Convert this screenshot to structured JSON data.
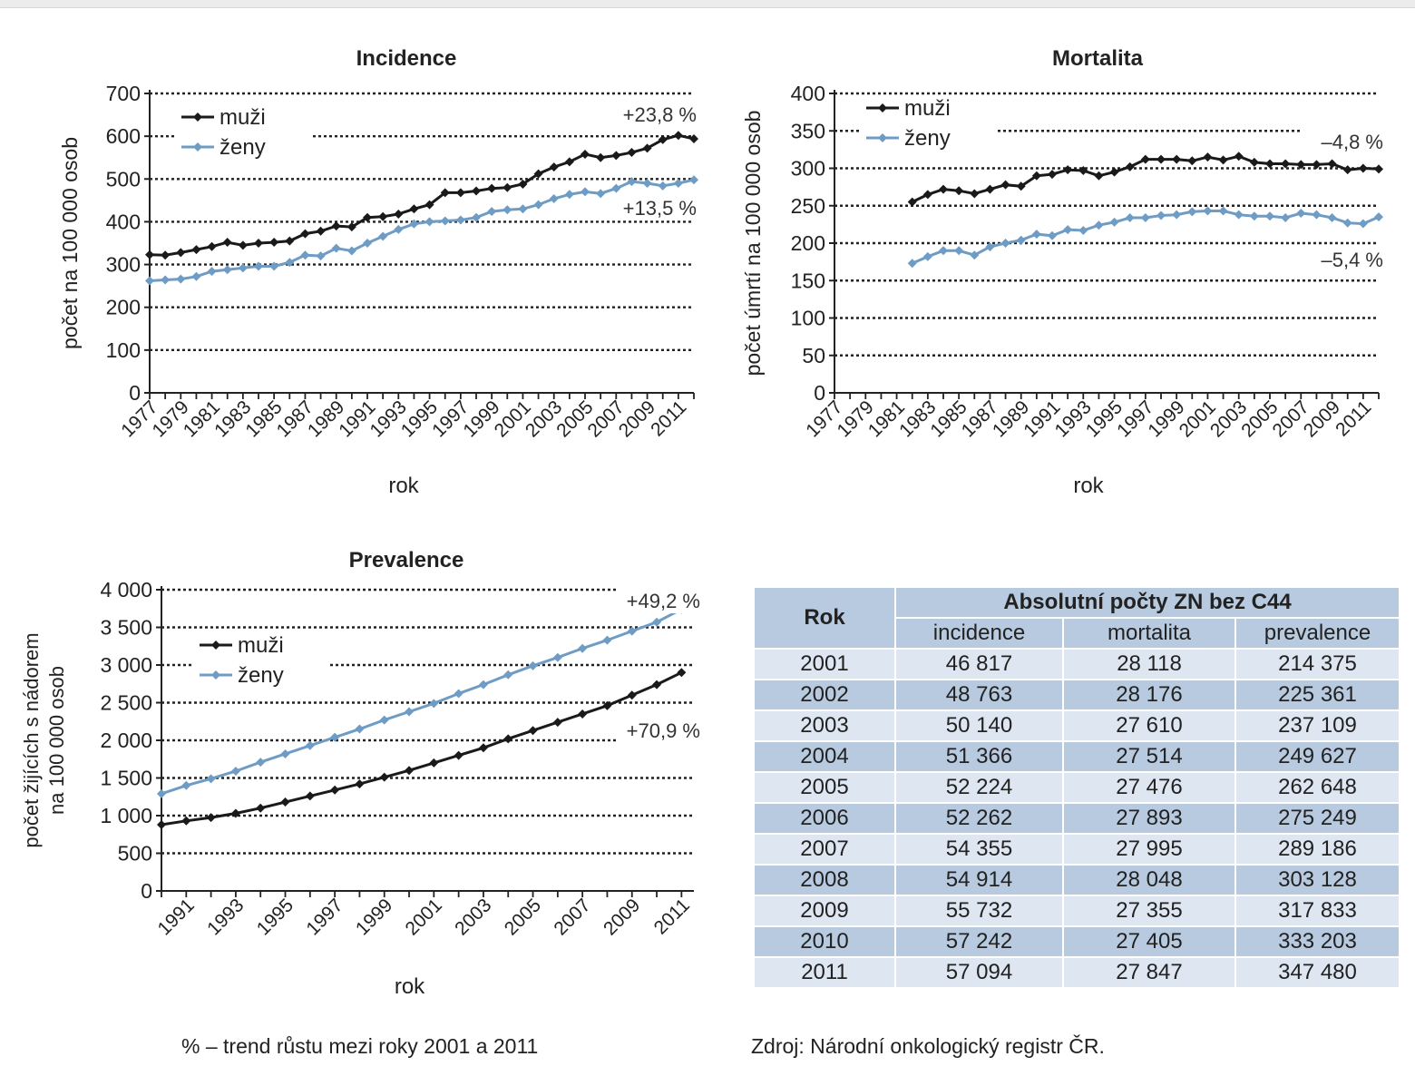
{
  "chart_data": [
    {
      "type": "line",
      "title": "Incidence",
      "xlabel": "rok",
      "ylabel": "počet na 100 000 osob",
      "ylim": [
        0,
        700
      ],
      "yticks": [
        "0",
        "100",
        "200",
        "300",
        "400",
        "500",
        "600",
        "700"
      ],
      "xticks": [
        "1977",
        "1979",
        "1981",
        "1983",
        "1985",
        "1987",
        "1989",
        "1991",
        "1993",
        "1995",
        "1997",
        "1999",
        "2001",
        "2003",
        "2005",
        "2007",
        "2009",
        "2011"
      ],
      "x": [
        1977,
        1978,
        1979,
        1980,
        1981,
        1982,
        1983,
        1984,
        1985,
        1986,
        1987,
        1988,
        1989,
        1990,
        1991,
        1992,
        1993,
        1994,
        1995,
        1996,
        1997,
        1998,
        1999,
        2000,
        2001,
        2002,
        2003,
        2004,
        2005,
        2006,
        2007,
        2008,
        2009,
        2010,
        2011,
        2012
      ],
      "series": [
        {
          "name": "muži",
          "color": "#1a1a1a",
          "values": [
            323,
            322,
            328,
            335,
            342,
            352,
            345,
            350,
            352,
            355,
            372,
            378,
            390,
            388,
            410,
            412,
            418,
            430,
            440,
            468,
            468,
            472,
            478,
            480,
            488,
            512,
            528,
            540,
            558,
            550,
            555,
            562,
            572,
            592,
            602,
            594
          ]
        },
        {
          "name": "ženy",
          "color": "#6e9cc4",
          "values": [
            262,
            264,
            266,
            272,
            284,
            288,
            292,
            296,
            296,
            305,
            322,
            320,
            338,
            332,
            350,
            366,
            382,
            395,
            400,
            402,
            404,
            410,
            424,
            428,
            430,
            440,
            454,
            464,
            470,
            466,
            478,
            494,
            490,
            484,
            490,
            498
          ]
        }
      ],
      "annotations": [
        "+23,8 %",
        "+13,5 %"
      ],
      "legend": "top-left",
      "grid": true
    },
    {
      "type": "line",
      "title": "Mortalita",
      "xlabel": "rok",
      "ylabel": "počet úmrtí na 100 000 osob",
      "ylim": [
        0,
        400
      ],
      "yticks": [
        "0",
        "50",
        "100",
        "150",
        "200",
        "250",
        "300",
        "350",
        "400"
      ],
      "xticks": [
        "1977",
        "1979",
        "1981",
        "1983",
        "1985",
        "1987",
        "1989",
        "1991",
        "1993",
        "1995",
        "1997",
        "1999",
        "2001",
        "2003",
        "2005",
        "2007",
        "2009",
        "2011"
      ],
      "x": [
        1982,
        1983,
        1984,
        1985,
        1986,
        1987,
        1988,
        1989,
        1990,
        1991,
        1992,
        1993,
        1994,
        1995,
        1996,
        1997,
        1998,
        1999,
        2000,
        2001,
        2002,
        2003,
        2004,
        2005,
        2006,
        2007,
        2008,
        2009,
        2010,
        2011,
        2012
      ],
      "series": [
        {
          "name": "muži",
          "color": "#1a1a1a",
          "values": [
            255,
            265,
            272,
            270,
            266,
            272,
            278,
            276,
            290,
            292,
            298,
            297,
            290,
            295,
            302,
            312,
            312,
            312,
            310,
            315,
            311,
            316,
            308,
            306,
            306,
            305,
            305,
            306,
            298,
            300,
            299
          ]
        },
        {
          "name": "ženy",
          "color": "#6e9cc4",
          "values": [
            173,
            182,
            190,
            190,
            184,
            195,
            200,
            204,
            212,
            210,
            218,
            217,
            224,
            228,
            234,
            234,
            237,
            238,
            242,
            243,
            243,
            238,
            236,
            236,
            234,
            240,
            238,
            234,
            227,
            226,
            235
          ]
        }
      ],
      "annotations": [
        "–4,8 %",
        "–5,4 %"
      ],
      "legend": "top-left",
      "grid": true
    },
    {
      "type": "line",
      "title": "Prevalence",
      "xlabel": "rok",
      "ylabel": "počet žijících s nádorem na 100 000 osob",
      "ylim": [
        0,
        4000
      ],
      "yticks": [
        "0",
        "500",
        "1 000",
        "1 500",
        "2 000",
        "2 500",
        "3 000",
        "3 500",
        "4 000"
      ],
      "xticks": [
        "1991",
        "1993",
        "1995",
        "1997",
        "1999",
        "2001",
        "2003",
        "2005",
        "2007",
        "2009",
        "2011"
      ],
      "x": [
        1990,
        1991,
        1992,
        1993,
        1994,
        1995,
        1996,
        1997,
        1998,
        1999,
        2000,
        2001,
        2002,
        2003,
        2004,
        2005,
        2006,
        2007,
        2008,
        2009,
        2010,
        2011
      ],
      "series": [
        {
          "name": "muži",
          "color": "#1a1a1a",
          "values": [
            880,
            930,
            975,
            1030,
            1100,
            1180,
            1260,
            1340,
            1420,
            1510,
            1600,
            1700,
            1800,
            1900,
            2020,
            2130,
            2240,
            2350,
            2460,
            2600,
            2740,
            2900
          ]
        },
        {
          "name": "ženy",
          "color": "#6e9cc4",
          "values": [
            1290,
            1400,
            1490,
            1590,
            1710,
            1820,
            1930,
            2040,
            2150,
            2270,
            2380,
            2490,
            2620,
            2740,
            2870,
            2990,
            3100,
            3220,
            3330,
            3450,
            3570,
            3740
          ]
        }
      ],
      "annotations": [
        "+49,2 %",
        "+70,9 %"
      ],
      "legend": "top-left",
      "grid": true
    }
  ],
  "table": {
    "corner": "Rok",
    "group_header": "Absolutní počty ZN bez C44",
    "columns": [
      "incidence",
      "mortalita",
      "prevalence"
    ],
    "rows": [
      [
        "2001",
        "46 817",
        "28 118",
        "214 375"
      ],
      [
        "2002",
        "48 763",
        "28 176",
        "225 361"
      ],
      [
        "2003",
        "50 140",
        "27 610",
        "237 109"
      ],
      [
        "2004",
        "51 366",
        "27 514",
        "249 627"
      ],
      [
        "2005",
        "52 224",
        "27 476",
        "262 648"
      ],
      [
        "2006",
        "52 262",
        "27 893",
        "275 249"
      ],
      [
        "2007",
        "54 355",
        "27 995",
        "289 186"
      ],
      [
        "2008",
        "54 914",
        "28 048",
        "303 128"
      ],
      [
        "2009",
        "55 732",
        "27 355",
        "317 833"
      ],
      [
        "2010",
        "57 242",
        "27 405",
        "333 203"
      ],
      [
        "2011",
        "57 094",
        "27 847",
        "347 480"
      ]
    ]
  },
  "notes": {
    "trend": "% – trend růstu mezi roky 2001 a 2011",
    "source": "Zdroj: Národní onkologický registr ČR."
  }
}
